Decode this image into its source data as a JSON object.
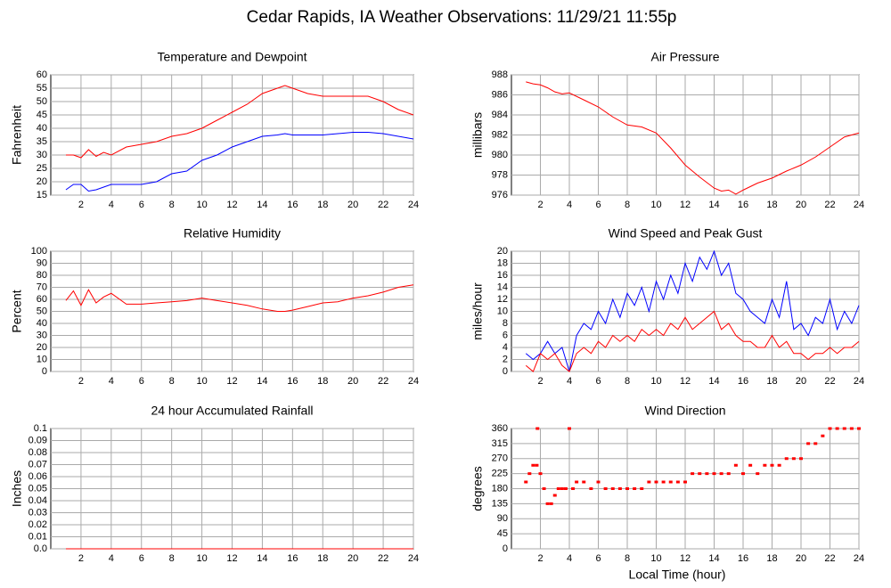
{
  "title": "Cedar Rapids, IA Weather Observations: 11/29/21 11:55p",
  "xlabel": "Local Time (hour)",
  "chart_data": [
    {
      "type": "line",
      "title": "Temperature and Dewpoint",
      "ylabel": "Fahrenheit",
      "x": [
        1,
        1.5,
        2,
        2.5,
        3,
        3.5,
        4,
        5,
        6,
        7,
        8,
        9,
        10,
        11,
        12,
        13,
        14,
        15,
        15.5,
        16,
        17,
        18,
        19,
        20,
        21,
        22,
        23,
        24
      ],
      "series": [
        {
          "color": "#ff0000",
          "values": [
            30,
            30,
            29,
            32,
            29.5,
            31,
            30,
            33,
            34,
            35,
            37,
            38,
            40,
            43,
            46,
            49,
            53,
            55,
            56,
            55,
            53,
            52,
            52,
            52,
            52,
            50,
            47,
            45
          ]
        },
        {
          "color": "#0000ff",
          "values": [
            17,
            19,
            19,
            16.5,
            17,
            18,
            19,
            19,
            19,
            20,
            23,
            24,
            28,
            30,
            33,
            35,
            37,
            37.5,
            38,
            37.5,
            37.5,
            37.5,
            38,
            38.5,
            38.5,
            38,
            37,
            36
          ]
        }
      ],
      "xlim": [
        0,
        24
      ],
      "xticks": [
        2,
        4,
        6,
        8,
        10,
        12,
        14,
        16,
        18,
        20,
        22,
        24
      ],
      "ylim": [
        15,
        60
      ],
      "yticks": [
        15,
        20,
        25,
        30,
        35,
        40,
        45,
        50,
        55,
        60
      ],
      "grid": true
    },
    {
      "type": "line",
      "title": "Air Pressure",
      "ylabel": "millibars",
      "x": [
        1,
        1.5,
        2,
        2.5,
        3,
        3.5,
        4,
        5,
        6,
        7,
        8,
        9,
        10,
        11,
        12,
        13,
        14,
        14.5,
        15,
        15.5,
        16,
        17,
        18,
        19,
        20,
        21,
        22,
        23,
        24
      ],
      "series": [
        {
          "color": "#ff0000",
          "values": [
            987.3,
            987.1,
            987,
            986.7,
            986.3,
            986.1,
            986.2,
            985.5,
            984.8,
            983.8,
            983,
            982.8,
            982.2,
            980.7,
            979,
            977.8,
            976.7,
            976.4,
            976.5,
            976.1,
            976.5,
            977.2,
            977.7,
            978.4,
            979,
            979.8,
            980.8,
            981.8,
            982.2
          ]
        }
      ],
      "xlim": [
        0,
        24
      ],
      "xticks": [
        2,
        4,
        6,
        8,
        10,
        12,
        14,
        16,
        18,
        20,
        22,
        24
      ],
      "ylim": [
        976,
        988
      ],
      "yticks": [
        976,
        978,
        980,
        982,
        984,
        986,
        988
      ],
      "grid": true
    },
    {
      "type": "line",
      "title": "Relative Humidity",
      "ylabel": "Percent",
      "x": [
        1,
        1.5,
        2,
        2.5,
        3,
        3.5,
        4,
        5,
        6,
        7,
        8,
        9,
        10,
        11,
        12,
        13,
        14,
        15,
        15.5,
        16,
        17,
        18,
        19,
        20,
        21,
        22,
        23,
        24
      ],
      "series": [
        {
          "color": "#ff0000",
          "values": [
            59,
            67,
            55,
            68,
            57,
            62,
            65,
            56,
            56,
            57,
            58,
            59,
            61,
            59,
            57,
            55,
            52,
            50,
            50,
            51,
            54,
            57,
            58,
            61,
            63,
            66,
            70,
            72
          ]
        }
      ],
      "xlim": [
        0,
        24
      ],
      "xticks": [
        2,
        4,
        6,
        8,
        10,
        12,
        14,
        16,
        18,
        20,
        22,
        24
      ],
      "ylim": [
        0,
        100
      ],
      "yticks": [
        0,
        10,
        20,
        30,
        40,
        50,
        60,
        70,
        80,
        90,
        100
      ],
      "grid": true
    },
    {
      "type": "line",
      "title": "Wind Speed and Peak Gust",
      "ylabel": "miles/hour",
      "x": [
        1,
        1.5,
        2,
        2.5,
        3,
        3.5,
        4,
        4.5,
        5,
        5.5,
        6,
        6.5,
        7,
        7.5,
        8,
        8.5,
        9,
        9.5,
        10,
        10.5,
        11,
        11.5,
        12,
        12.5,
        13,
        13.5,
        14,
        14.5,
        15,
        15.5,
        16,
        16.5,
        17,
        17.5,
        18,
        18.5,
        19,
        19.5,
        20,
        20.5,
        21,
        21.5,
        22,
        22.5,
        23,
        23.5,
        24
      ],
      "series": [
        {
          "color": "#0000ff",
          "values": [
            3,
            2,
            3,
            5,
            3,
            4,
            0,
            6,
            8,
            7,
            10,
            8,
            12,
            9,
            13,
            11,
            14,
            10,
            15,
            12,
            16,
            13,
            18,
            15,
            19,
            17,
            20,
            16,
            18,
            13,
            12,
            10,
            9,
            8,
            12,
            9,
            15,
            7,
            8,
            6,
            9,
            8,
            12,
            7,
            10,
            8,
            11
          ]
        },
        {
          "color": "#ff0000",
          "values": [
            1,
            0,
            3,
            2,
            3,
            1,
            0,
            3,
            4,
            3,
            5,
            4,
            6,
            5,
            6,
            5,
            7,
            6,
            7,
            6,
            8,
            7,
            9,
            7,
            8,
            9,
            10,
            7,
            8,
            6,
            5,
            5,
            4,
            4,
            6,
            4,
            5,
            3,
            3,
            2,
            3,
            3,
            4,
            3,
            4,
            4,
            5
          ]
        }
      ],
      "xlim": [
        0,
        24
      ],
      "xticks": [
        2,
        4,
        6,
        8,
        10,
        12,
        14,
        16,
        18,
        20,
        22,
        24
      ],
      "ylim": [
        0,
        20
      ],
      "yticks": [
        0,
        2,
        4,
        6,
        8,
        10,
        12,
        14,
        16,
        18,
        20
      ],
      "grid": true
    },
    {
      "type": "line",
      "title": "24 hour Accumulated Rainfall",
      "ylabel": "Inches",
      "x": [
        1,
        24
      ],
      "series": [
        {
          "color": "#ff0000",
          "values": [
            0,
            0
          ]
        }
      ],
      "xlim": [
        0,
        24
      ],
      "xticks": [
        2,
        4,
        6,
        8,
        10,
        12,
        14,
        16,
        18,
        20,
        22,
        24
      ],
      "ylim": [
        0,
        0.1
      ],
      "yticks": [
        {
          "value": 0,
          "label": "0.0"
        },
        0.01,
        0.02,
        0.03,
        0.04,
        0.05,
        0.06,
        0.07,
        0.08,
        0.09,
        {
          "value": 0.1,
          "label": "0.1"
        }
      ],
      "grid": true
    },
    {
      "type": "scatter",
      "title": "Wind Direction",
      "ylabel": "degrees",
      "x": [
        1,
        1.25,
        1.5,
        1.75,
        1.8,
        2,
        2.25,
        2.5,
        2.75,
        3,
        3.25,
        3.5,
        3.75,
        4,
        4.25,
        4.5,
        5,
        5.5,
        6,
        6.5,
        7,
        7.5,
        8,
        8.5,
        9,
        9.5,
        10,
        10.5,
        11,
        11.5,
        12,
        12.5,
        13,
        13.5,
        14,
        14.5,
        15,
        15.5,
        16,
        16.5,
        17,
        17.5,
        18,
        18.5,
        19,
        19.5,
        20,
        20.5,
        21,
        21.5,
        22,
        22.5,
        23,
        23.5,
        24
      ],
      "series": [
        {
          "color": "#ff0000",
          "values": [
            200,
            225,
            250,
            250,
            360,
            225,
            180,
            135,
            135,
            160,
            180,
            180,
            180,
            360,
            180,
            200,
            200,
            180,
            200,
            180,
            180,
            180,
            180,
            180,
            180,
            200,
            200,
            200,
            200,
            200,
            200,
            225,
            225,
            225,
            225,
            225,
            225,
            250,
            225,
            250,
            225,
            250,
            250,
            250,
            270,
            270,
            270,
            315,
            315,
            338,
            360,
            360,
            360,
            360,
            360
          ]
        }
      ],
      "xlim": [
        0,
        24
      ],
      "xticks": [
        2,
        4,
        6,
        8,
        10,
        12,
        14,
        16,
        18,
        20,
        22,
        24
      ],
      "ylim": [
        0,
        360
      ],
      "yticks": [
        0,
        45,
        90,
        135,
        180,
        225,
        270,
        315,
        360
      ],
      "grid": true
    }
  ]
}
